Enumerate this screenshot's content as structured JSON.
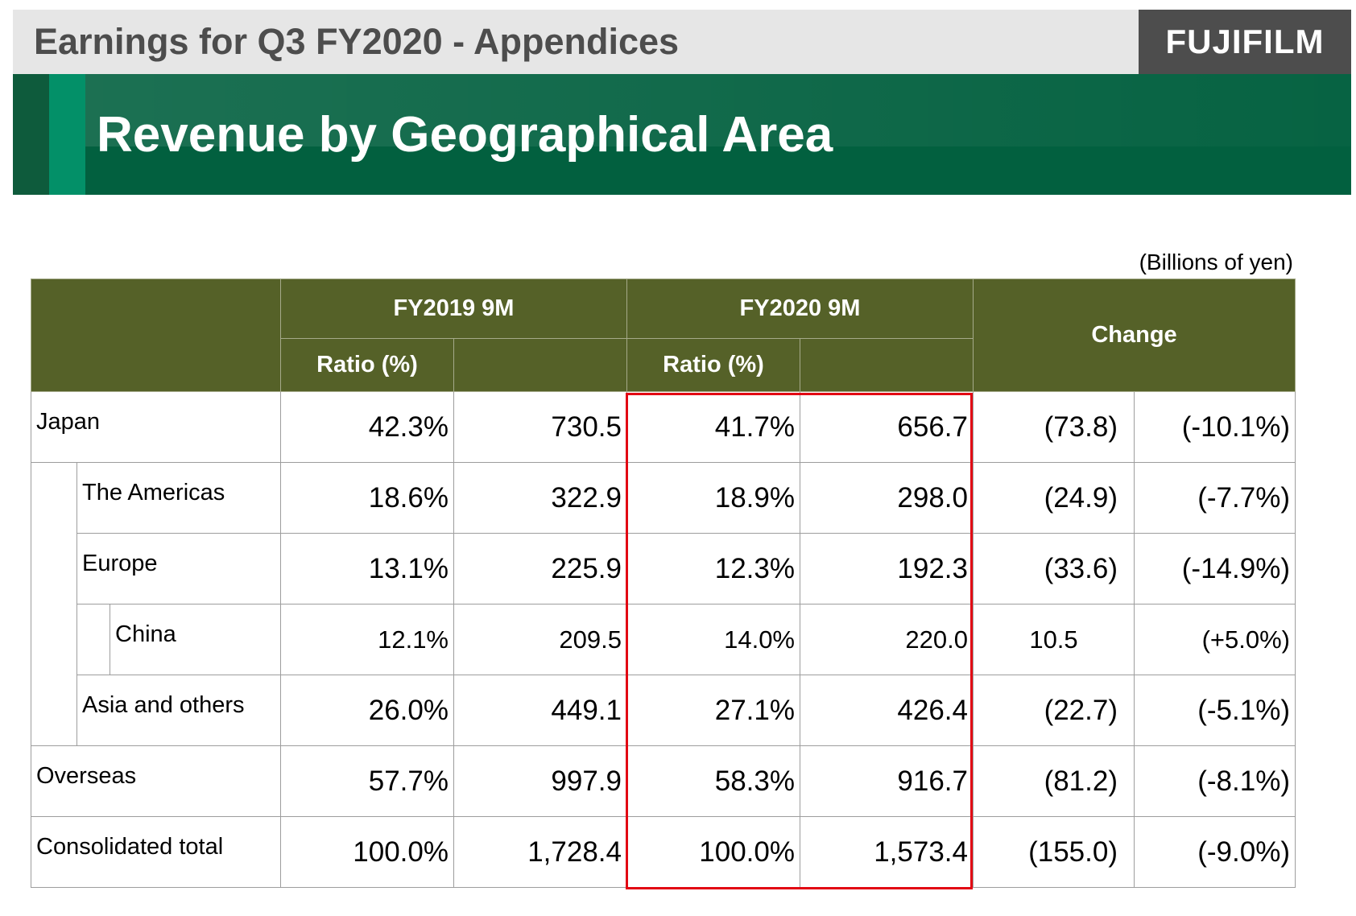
{
  "header": {
    "subtitle": "Earnings for Q3 FY2020 - Appendices",
    "logo_text": "FUJIFILM",
    "title": "Revenue by Geographical Area"
  },
  "unit_note": "(Billions of yen)",
  "table": {
    "col_fy2019": "FY2019 9M",
    "col_fy2020": "FY2020 9M",
    "col_change": "Change",
    "ratio_label": "Ratio (%)",
    "rows": [
      {
        "label": "Japan",
        "r19": "42.3%",
        "v19": "730.5",
        "r20": "41.7%",
        "v20": "656.7",
        "chg": "(73.8)",
        "chg_pct": "(-10.1%)"
      },
      {
        "label": "The Americas",
        "r19": "18.6%",
        "v19": "322.9",
        "r20": "18.9%",
        "v20": "298.0",
        "chg": "(24.9)",
        "chg_pct": "(-7.7%)"
      },
      {
        "label": "Europe",
        "r19": "13.1%",
        "v19": "225.9",
        "r20": "12.3%",
        "v20": "192.3",
        "chg": "(33.6)",
        "chg_pct": "(-14.9%)"
      },
      {
        "label": "China",
        "r19": "12.1%",
        "v19": "209.5",
        "r20": "14.0%",
        "v20": "220.0",
        "chg": "10.5",
        "chg_pct": "(+5.0%)"
      },
      {
        "label": "Asia and others",
        "r19": "26.0%",
        "v19": "449.1",
        "r20": "27.1%",
        "v20": "426.4",
        "chg": "(22.7)",
        "chg_pct": "(-5.1%)"
      },
      {
        "label": "Overseas",
        "r19": "57.7%",
        "v19": "997.9",
        "r20": "58.3%",
        "v20": "916.7",
        "chg": "(81.2)",
        "chg_pct": "(-8.1%)"
      },
      {
        "label": "Consolidated total",
        "r19": "100.0%",
        "v19": "1,728.4",
        "r20": "100.0%",
        "v20": "1,573.4",
        "chg": "(155.0)",
        "chg_pct": "(-9.0%)"
      }
    ]
  },
  "colors": {
    "header_green": "#556128",
    "banner_green": "#02603f",
    "highlight_red": "#e20613"
  }
}
